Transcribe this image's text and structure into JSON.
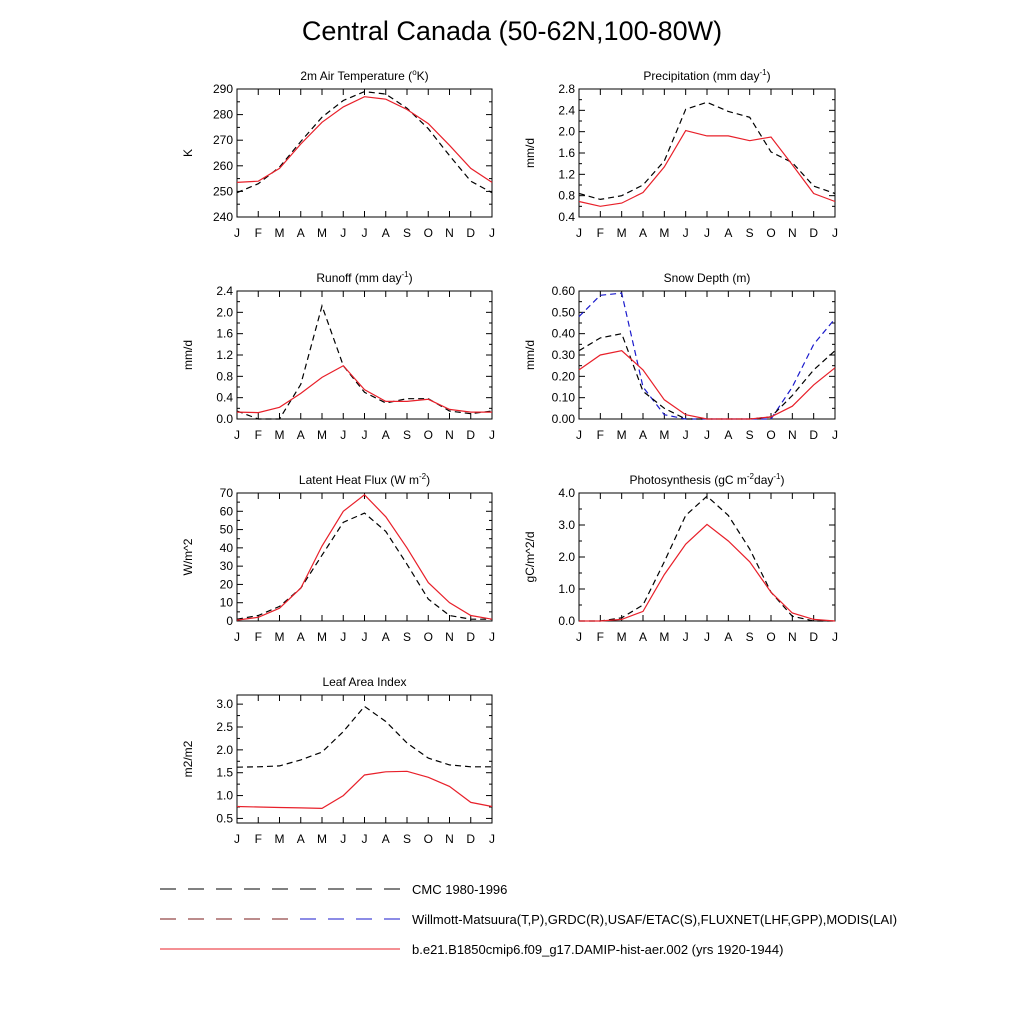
{
  "figure": {
    "title": "Central Canada (50-62N,100-80W)",
    "months": [
      "J",
      "F",
      "M",
      "A",
      "M",
      "J",
      "J",
      "A",
      "S",
      "O",
      "N",
      "D",
      "J"
    ],
    "legend": [
      {
        "label": "CMC 1980-1996",
        "color": "#000000",
        "dash": "long"
      },
      {
        "label": "Willmott-Matsuura(T,P),GRDC(R),USAF/ETAC(S),FLUXNET(LHF,GPP),MODIS(LAI)",
        "color": "#000000",
        "dash": "long"
      },
      {
        "label": "b.e21.B1850cmip6.f09_g17.DAMIP-hist-aer.002 (yrs 1920-1944)",
        "color": "#e8202a",
        "dash": "solid"
      }
    ],
    "colors": {
      "model": "#e8202a",
      "obs": "#000000",
      "cmc": "#1a1acc"
    }
  },
  "chart_data": [
    {
      "type": "line",
      "title_parts": [
        {
          "t": "2m Air Temperature ("
        },
        {
          "t": "o",
          "sup": true
        },
        {
          "t": "K)"
        }
      ],
      "ylabel": "K",
      "ylim": [
        240,
        290
      ],
      "yticks": [
        "240",
        "250",
        "260",
        "270",
        "280",
        "290"
      ],
      "x": [
        "J",
        "F",
        "M",
        "A",
        "M",
        "J",
        "J",
        "A",
        "S",
        "O",
        "N",
        "D",
        "J"
      ],
      "series": [
        {
          "role": "obs",
          "values": [
            249.5,
            253,
            259.5,
            269.5,
            279,
            285.5,
            289,
            288,
            282.5,
            274.5,
            264,
            254,
            249.5
          ]
        },
        {
          "role": "model",
          "values": [
            253.5,
            254,
            259,
            268.5,
            277,
            283,
            287,
            286,
            282,
            276.5,
            268,
            259,
            253.5
          ]
        }
      ]
    },
    {
      "type": "line",
      "title_parts": [
        {
          "t": "Precipitation (mm day"
        },
        {
          "t": "-1",
          "sup": true
        },
        {
          "t": ")"
        }
      ],
      "ylabel": "mm/d",
      "ylim": [
        0.4,
        2.8
      ],
      "yticks": [
        "0.4",
        "0.8",
        "1.2",
        "1.6",
        "2.0",
        "2.4",
        "2.8"
      ],
      "x": [
        "J",
        "F",
        "M",
        "A",
        "M",
        "J",
        "J",
        "A",
        "S",
        "O",
        "N",
        "D",
        "J"
      ],
      "series": [
        {
          "role": "obs",
          "values": [
            0.84,
            0.73,
            0.8,
            1.0,
            1.45,
            2.42,
            2.55,
            2.38,
            2.27,
            1.62,
            1.42,
            0.98,
            0.84
          ]
        },
        {
          "role": "model",
          "values": [
            0.69,
            0.6,
            0.66,
            0.86,
            1.34,
            2.02,
            1.92,
            1.92,
            1.83,
            1.9,
            1.38,
            0.84,
            0.69
          ]
        }
      ]
    },
    {
      "type": "line",
      "title_parts": [
        {
          "t": "Runoff (mm day"
        },
        {
          "t": "-1",
          "sup": true
        },
        {
          "t": ")"
        }
      ],
      "ylabel": "mm/d",
      "ylim": [
        0.0,
        2.4
      ],
      "yticks": [
        "0.0",
        "0.4",
        "0.8",
        "1.2",
        "1.6",
        "2.0",
        "2.4"
      ],
      "x": [
        "J",
        "F",
        "M",
        "A",
        "M",
        "J",
        "J",
        "A",
        "S",
        "O",
        "N",
        "D",
        "J"
      ],
      "series": [
        {
          "role": "obs",
          "values": [
            0.15,
            0.0,
            0.0,
            0.65,
            2.12,
            1.0,
            0.5,
            0.3,
            0.38,
            0.38,
            0.15,
            0.1,
            0.15
          ]
        },
        {
          "role": "model",
          "values": [
            0.13,
            0.12,
            0.22,
            0.48,
            0.78,
            1.0,
            0.55,
            0.33,
            0.33,
            0.37,
            0.18,
            0.13,
            0.13
          ]
        }
      ]
    },
    {
      "type": "line",
      "title_parts": [
        {
          "t": "Snow Depth (m)"
        }
      ],
      "ylabel": "mm/d",
      "ylim": [
        0.0,
        0.6
      ],
      "yticks": [
        "0.00",
        "0.10",
        "0.20",
        "0.30",
        "0.40",
        "0.50",
        "0.60"
      ],
      "x": [
        "J",
        "F",
        "M",
        "A",
        "M",
        "J",
        "J",
        "A",
        "S",
        "O",
        "N",
        "D",
        "J"
      ],
      "series": [
        {
          "role": "cmc",
          "values": [
            0.48,
            0.58,
            0.59,
            0.15,
            0.02,
            0.0,
            0.0,
            0.0,
            0.0,
            0.0,
            0.15,
            0.35,
            0.47
          ]
        },
        {
          "role": "obs",
          "values": [
            0.32,
            0.38,
            0.4,
            0.13,
            0.05,
            0.0,
            0.0,
            0.0,
            0.0,
            0.01,
            0.11,
            0.23,
            0.32
          ]
        },
        {
          "role": "model",
          "values": [
            0.23,
            0.3,
            0.32,
            0.23,
            0.09,
            0.02,
            0.0,
            0.0,
            0.0,
            0.01,
            0.06,
            0.16,
            0.24
          ]
        }
      ]
    },
    {
      "type": "line",
      "title_parts": [
        {
          "t": "Latent Heat Flux (W m"
        },
        {
          "t": "-2",
          "sup": true
        },
        {
          "t": ")"
        }
      ],
      "ylabel": "W/m^2",
      "ylim": [
        0,
        70
      ],
      "yticks": [
        "0",
        "10",
        "20",
        "30",
        "40",
        "50",
        "60",
        "70"
      ],
      "x": [
        "J",
        "F",
        "M",
        "A",
        "M",
        "J",
        "J",
        "A",
        "S",
        "O",
        "N",
        "D",
        "J"
      ],
      "series": [
        {
          "role": "obs",
          "values": [
            1,
            3,
            8,
            18,
            36,
            54,
            59,
            49,
            31,
            12,
            3,
            1,
            1
          ]
        },
        {
          "role": "model",
          "values": [
            0.5,
            2,
            7,
            18,
            41,
            60,
            69,
            57,
            40,
            21,
            10,
            3,
            1
          ]
        }
      ]
    },
    {
      "type": "line",
      "title_parts": [
        {
          "t": "Photosynthesis (gC m"
        },
        {
          "t": "-2",
          "sup": true
        },
        {
          "t": "day"
        },
        {
          "t": "-1",
          "sup": true
        },
        {
          "t": ")"
        }
      ],
      "ylabel": "gC/m^2/d",
      "ylim": [
        0.0,
        4.0
      ],
      "yticks": [
        "0.0",
        "1.0",
        "2.0",
        "3.0",
        "4.0"
      ],
      "x": [
        "J",
        "F",
        "M",
        "A",
        "M",
        "J",
        "J",
        "A",
        "S",
        "O",
        "N",
        "D",
        "J"
      ],
      "series": [
        {
          "role": "obs",
          "values": [
            0.0,
            0.0,
            0.1,
            0.5,
            1.85,
            3.3,
            3.9,
            3.3,
            2.25,
            0.9,
            0.15,
            0.0,
            0.0
          ]
        },
        {
          "role": "model",
          "values": [
            0.0,
            0.0,
            0.05,
            0.3,
            1.45,
            2.4,
            3.02,
            2.5,
            1.85,
            0.9,
            0.25,
            0.05,
            0.0
          ]
        }
      ]
    },
    {
      "type": "line",
      "title_parts": [
        {
          "t": "Leaf Area Index"
        }
      ],
      "ylabel": "m2/m2",
      "ylim": [
        0.4,
        3.2
      ],
      "yticks": [
        "0.5",
        "1.0",
        "1.5",
        "2.0",
        "2.5",
        "3.0"
      ],
      "x": [
        "J",
        "F",
        "M",
        "A",
        "M",
        "J",
        "J",
        "A",
        "S",
        "O",
        "N",
        "D",
        "J"
      ],
      "series": [
        {
          "role": "obs",
          "values": [
            1.62,
            1.63,
            1.65,
            1.78,
            1.95,
            2.4,
            2.95,
            2.62,
            2.15,
            1.82,
            1.67,
            1.63,
            1.63
          ]
        },
        {
          "role": "model",
          "values": [
            0.76,
            0.75,
            0.74,
            0.73,
            0.72,
            1.0,
            1.45,
            1.52,
            1.53,
            1.4,
            1.2,
            0.85,
            0.76
          ]
        }
      ]
    }
  ]
}
